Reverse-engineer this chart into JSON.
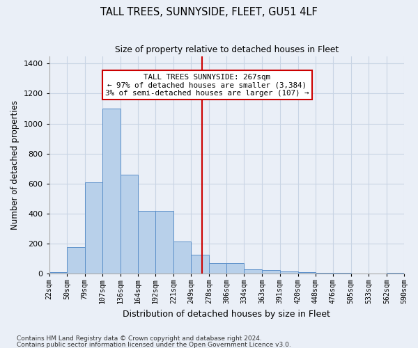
{
  "title": "TALL TREES, SUNNYSIDE, FLEET, GU51 4LF",
  "subtitle": "Size of property relative to detached houses in Fleet",
  "xlabel": "Distribution of detached houses by size in Fleet",
  "ylabel": "Number of detached properties",
  "footnote1": "Contains HM Land Registry data © Crown copyright and database right 2024.",
  "footnote2": "Contains public sector information licensed under the Open Government Licence v3.0.",
  "annotation_title": "TALL TREES SUNNYSIDE: 267sqm",
  "annotation_line1": "← 97% of detached houses are smaller (3,384)",
  "annotation_line2": "3% of semi-detached houses are larger (107) →",
  "property_size": 267,
  "bin_edges": [
    22,
    50,
    79,
    107,
    136,
    164,
    192,
    221,
    249,
    278,
    306,
    334,
    363,
    391,
    420,
    448,
    476,
    505,
    533,
    562,
    590
  ],
  "bar_heights": [
    10,
    175,
    610,
    1100,
    660,
    420,
    420,
    215,
    125,
    70,
    70,
    30,
    25,
    15,
    10,
    7,
    5,
    3,
    2,
    5
  ],
  "bar_color": "#b8d0ea",
  "bar_edge_color": "#5b8fc9",
  "vline_color": "#cc0000",
  "vline_x": 267,
  "annotation_box_color": "#cc0000",
  "annotation_bg_color": "#ffffff",
  "grid_color": "#c8d4e4",
  "bg_color": "#eaeff7",
  "ylim": [
    0,
    1450
  ],
  "yticks": [
    0,
    200,
    400,
    600,
    800,
    1000,
    1200,
    1400
  ],
  "tick_labels": [
    "22sqm",
    "50sqm",
    "79sqm",
    "107sqm",
    "136sqm",
    "164sqm",
    "192sqm",
    "221sqm",
    "249sqm",
    "278sqm",
    "306sqm",
    "334sqm",
    "363sqm",
    "391sqm",
    "420sqm",
    "448sqm",
    "476sqm",
    "505sqm",
    "533sqm",
    "562sqm",
    "590sqm"
  ]
}
